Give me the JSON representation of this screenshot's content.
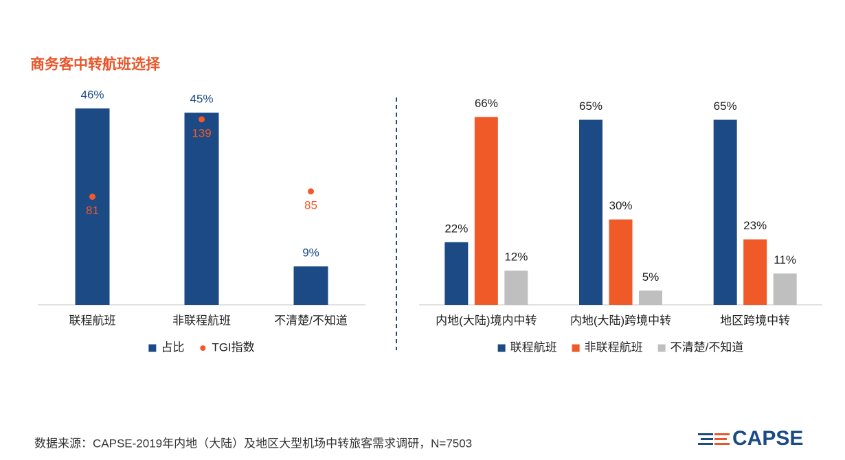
{
  "title": "商务客中转航班选择",
  "source": "数据来源：CAPSE-2019年内地（大陆）及地区大型机场中转旅客需求调研，N=7503",
  "logo": "CAPSE",
  "chart_data": [
    {
      "type": "bar",
      "categories": [
        "联程航班",
        "非联程航班",
        "不清楚/不知道"
      ],
      "ylim": [
        0,
        50
      ],
      "y2lim": [
        0,
        160
      ],
      "series": [
        {
          "name": "占比",
          "color": "#1b4a84",
          "values": [
            46,
            45,
            9
          ],
          "value_labels": [
            "46%",
            "45%",
            "9%"
          ]
        },
        {
          "name": "TGI指数",
          "type": "scatter",
          "axis": "y2",
          "color": "#f05a28",
          "values": [
            81,
            139,
            85
          ]
        }
      ]
    },
    {
      "type": "bar",
      "categories": [
        "内地(大陆)境内中转",
        "内地(大陆)跨境中转",
        "地区跨境中转"
      ],
      "ylim": [
        0,
        75
      ],
      "series": [
        {
          "name": "联程航班",
          "color": "#1b4a84",
          "values": [
            22,
            65,
            65
          ],
          "value_labels": [
            "22%",
            "65%",
            "65%"
          ]
        },
        {
          "name": "非联程航班",
          "color": "#f05a28",
          "values": [
            66,
            30,
            23
          ],
          "value_labels": [
            "66%",
            "30%",
            "23%"
          ]
        },
        {
          "name": "不清楚/不知道",
          "color": "#bfbfbf",
          "values": [
            12,
            5,
            11
          ],
          "value_labels": [
            "12%",
            "5%",
            "11%"
          ]
        }
      ]
    }
  ]
}
